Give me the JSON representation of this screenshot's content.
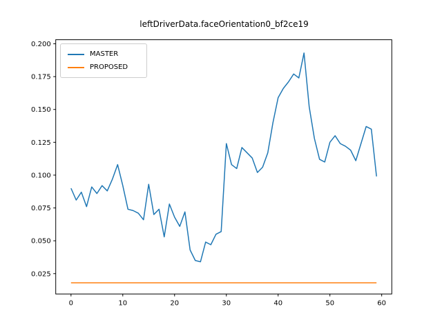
{
  "figure": {
    "background": "#ffffff"
  },
  "chart_data": {
    "type": "line",
    "title": "leftDriverData.faceOrientation0_bf2ce19",
    "xlabel": "",
    "ylabel": "",
    "x": [
      0,
      1,
      2,
      3,
      4,
      5,
      6,
      7,
      8,
      9,
      10,
      11,
      12,
      13,
      14,
      15,
      16,
      17,
      18,
      19,
      20,
      21,
      22,
      23,
      24,
      25,
      26,
      27,
      28,
      29,
      30,
      31,
      32,
      33,
      34,
      35,
      36,
      37,
      38,
      39,
      40,
      41,
      42,
      43,
      44,
      45,
      46,
      47,
      48,
      49,
      50,
      51,
      52,
      53,
      54,
      55,
      56,
      57,
      58,
      59
    ],
    "series": [
      {
        "name": "MASTER",
        "color": "#1f77b4",
        "values": [
          0.09,
          0.081,
          0.087,
          0.076,
          0.091,
          0.086,
          0.092,
          0.088,
          0.097,
          0.108,
          0.092,
          0.074,
          0.073,
          0.071,
          0.066,
          0.093,
          0.07,
          0.074,
          0.053,
          0.078,
          0.068,
          0.061,
          0.072,
          0.043,
          0.035,
          0.034,
          0.049,
          0.047,
          0.055,
          0.057,
          0.124,
          0.108,
          0.105,
          0.121,
          0.117,
          0.113,
          0.102,
          0.106,
          0.117,
          0.14,
          0.159,
          0.166,
          0.171,
          0.177,
          0.174,
          0.193,
          0.152,
          0.128,
          0.112,
          0.11,
          0.125,
          0.13,
          0.124,
          0.122,
          0.119,
          0.111,
          0.124,
          0.137,
          0.135,
          0.099
        ]
      },
      {
        "name": "PROPOSED",
        "color": "#ff7f0e",
        "values": [
          0.018,
          0.018,
          0.018,
          0.018,
          0.018,
          0.018,
          0.018,
          0.018,
          0.018,
          0.018,
          0.018,
          0.018,
          0.018,
          0.018,
          0.018,
          0.018,
          0.018,
          0.018,
          0.018,
          0.018,
          0.018,
          0.018,
          0.018,
          0.018,
          0.018,
          0.018,
          0.018,
          0.018,
          0.018,
          0.018,
          0.018,
          0.018,
          0.018,
          0.018,
          0.018,
          0.018,
          0.018,
          0.018,
          0.018,
          0.018,
          0.018,
          0.018,
          0.018,
          0.018,
          0.018,
          0.018,
          0.018,
          0.018,
          0.018,
          0.018,
          0.018,
          0.018,
          0.018,
          0.018,
          0.018,
          0.018,
          0.018,
          0.018,
          0.018,
          0.018
        ]
      }
    ],
    "xticks": [
      0,
      10,
      20,
      30,
      40,
      50,
      60
    ],
    "yticks": [
      0.025,
      0.05,
      0.075,
      0.1,
      0.125,
      0.15,
      0.175,
      0.2
    ],
    "xlim": [
      -2.95,
      61.95
    ],
    "ylim": [
      0.0095,
      0.2031
    ],
    "grid": false,
    "legend_position": "upper left"
  }
}
